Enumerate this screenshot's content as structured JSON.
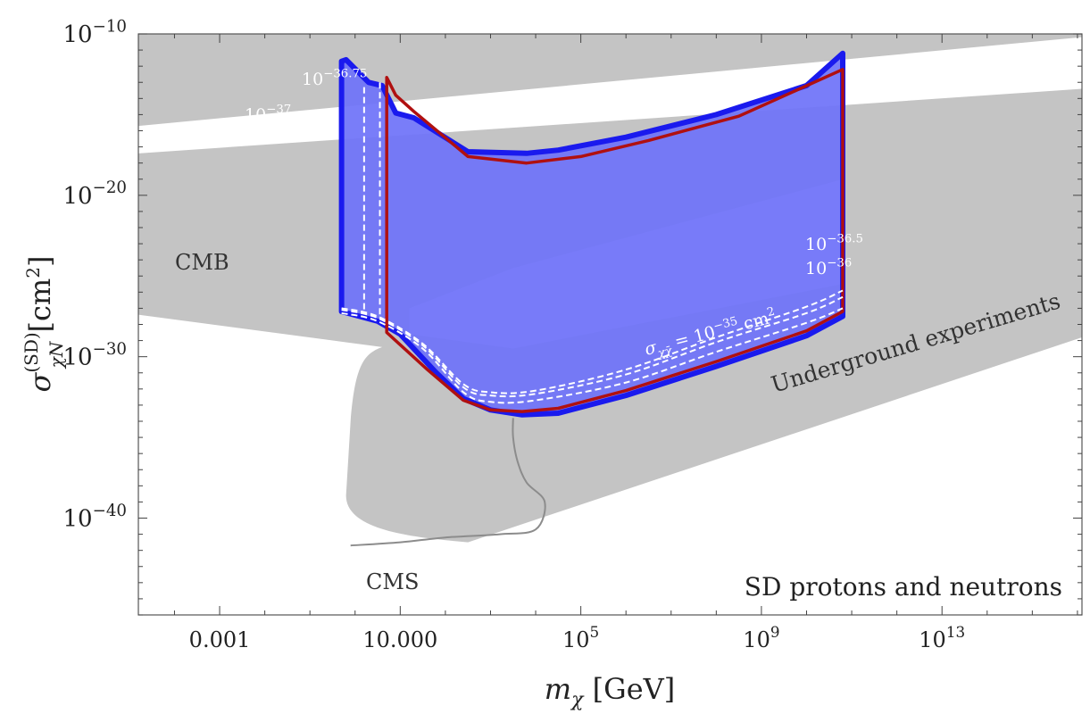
{
  "chart_data": {
    "type": "area",
    "title": "",
    "xlabel": {
      "main": "m",
      "sub": "χ",
      "unit": "[GeV]"
    },
    "ylabel": {
      "main": "σ",
      "sup": "(SD)",
      "sub": "χN",
      "unit": "[cm",
      "unit_sup": "2",
      "unit_close": "]"
    },
    "x_scale": "log10",
    "y_scale": "log10",
    "xlim_log10": [
      -4.8,
      16.1
    ],
    "ylim_log10": [
      -46,
      -10
    ],
    "x_ticks": [
      {
        "log": -3,
        "label": "0.001",
        "sup": ""
      },
      {
        "log": 1,
        "label": "10.000",
        "sup": ""
      },
      {
        "log": 5,
        "label": "10",
        "sup": "5"
      },
      {
        "log": 9,
        "label": "10",
        "sup": "9"
      },
      {
        "log": 13,
        "label": "10",
        "sup": "13"
      }
    ],
    "y_ticks": [
      {
        "log": -10,
        "label": "10",
        "sup": "−10"
      },
      {
        "log": -20,
        "label": "10",
        "sup": "−20"
      },
      {
        "log": -30,
        "label": "10",
        "sup": "−30"
      },
      {
        "log": -40,
        "label": "10",
        "sup": "−40"
      }
    ],
    "colors": {
      "excluded_gray": "#c4c4c4",
      "blue_fill": "#6e72f8",
      "blue_band": "#7a7efb",
      "blue_edge": "#1a1aee",
      "red": "#b01010",
      "cms_line": "#8c8c8c",
      "dashed": "#ffffff"
    },
    "regions": [
      {
        "name": "CMB",
        "label": "CMB",
        "points": [
          [
            -4.8,
            -10
          ],
          [
            16.1,
            -10
          ],
          [
            16.1,
            -10.2
          ],
          [
            -4.8,
            -15.7
          ]
        ],
        "lower_boundary": [
          [
            -4.8,
            -15.7
          ],
          [
            16.1,
            -10.2
          ]
        ],
        "description_hidden": true
      },
      {
        "name": "Underground experiments",
        "label": "Underground experiments",
        "upper_boundary": [
          [
            -4.8,
            -17.4
          ],
          [
            16.1,
            -13.4
          ]
        ],
        "lower_boundary": [
          [
            -4.8,
            -27.4
          ],
          [
            16.1,
            -28.8
          ]
        ],
        "valley_min": [
          2.5,
          -41.5
        ]
      }
    ],
    "series": [
      {
        "name": "blue_region",
        "upper": [
          [
            -0.3,
            -11.7
          ],
          [
            -0.2,
            -11.6
          ],
          [
            0.3,
            -13.0
          ],
          [
            0.6,
            -13.2
          ],
          [
            0.9,
            -14.9
          ],
          [
            1.3,
            -15.2
          ],
          [
            2.5,
            -17.3
          ],
          [
            3.8,
            -17.4
          ],
          [
            4.5,
            -17.2
          ],
          [
            6,
            -16.4
          ],
          [
            8,
            -15.0
          ],
          [
            10,
            -13.2
          ],
          [
            10.8,
            -11.2
          ]
        ],
        "lower": [
          [
            -0.3,
            -27.2
          ],
          [
            0.5,
            -27.8
          ],
          [
            1,
            -28.6
          ],
          [
            1.8,
            -31.0
          ],
          [
            2.4,
            -32.6
          ],
          [
            3.0,
            -33.3
          ],
          [
            3.7,
            -33.6
          ],
          [
            4.5,
            -33.5
          ],
          [
            6,
            -32.4
          ],
          [
            8,
            -30.6
          ],
          [
            10,
            -28.7
          ],
          [
            10.8,
            -27.5
          ]
        ]
      },
      {
        "name": "red_contour",
        "upper": [
          [
            0.7,
            -12.7
          ],
          [
            0.9,
            -13.8
          ],
          [
            1.3,
            -14.8
          ],
          [
            2.5,
            -17.6
          ],
          [
            3.8,
            -18.0
          ],
          [
            5,
            -17.6
          ],
          [
            6.5,
            -16.6
          ],
          [
            8.5,
            -15.1
          ],
          [
            10.8,
            -12.2
          ]
        ],
        "lower": [
          [
            0.7,
            -28.5
          ],
          [
            1.6,
            -30.8
          ],
          [
            2.4,
            -32.7
          ],
          [
            3.0,
            -33.3
          ],
          [
            3.7,
            -33.4
          ],
          [
            4.5,
            -33.2
          ],
          [
            6,
            -32.1
          ],
          [
            8,
            -30.3
          ],
          [
            10,
            -28.4
          ],
          [
            10.8,
            -27.2
          ]
        ]
      },
      {
        "name": "dashed_1e-35",
        "points": [
          [
            -0.3,
            -27.3
          ],
          [
            0.5,
            -27.8
          ],
          [
            1.5,
            -29.5
          ],
          [
            2.4,
            -32.2
          ],
          [
            3.0,
            -32.8
          ],
          [
            4,
            -32.7
          ],
          [
            6,
            -31.6
          ],
          [
            8,
            -29.7
          ],
          [
            10,
            -27.9
          ],
          [
            10.8,
            -27.0
          ]
        ]
      },
      {
        "name": "dashed_1e-36",
        "points": [
          [
            -0.3,
            -27.1
          ],
          [
            0.5,
            -27.6
          ],
          [
            1.5,
            -29.3
          ],
          [
            2.4,
            -31.9
          ],
          [
            3.0,
            -32.4
          ],
          [
            4,
            -32.3
          ],
          [
            6,
            -31.1
          ],
          [
            8,
            -29.1
          ],
          [
            10,
            -27.3
          ],
          [
            10.8,
            -26.3
          ]
        ]
      },
      {
        "name": "dashed_1e-36.5",
        "points": [
          [
            -0.3,
            -27.0
          ],
          [
            0.5,
            -27.5
          ],
          [
            1.5,
            -29.2
          ],
          [
            2.4,
            -31.7
          ],
          [
            3.0,
            -32.2
          ],
          [
            4,
            -32.1
          ],
          [
            6,
            -30.8
          ],
          [
            8,
            -28.8
          ],
          [
            10,
            -26.9
          ],
          [
            10.8,
            -25.9
          ]
        ]
      }
    ],
    "vertical_dashed": [
      {
        "x_log": 0.2,
        "y_top_log": -13.3,
        "y_bottom_log": -27.3
      },
      {
        "x_log": 0.55,
        "y_top_log": -13.0,
        "y_bottom_log": -27.6
      }
    ],
    "cms_curve": [
      [
        -0.1,
        -41.7
      ],
      [
        1,
        -41.5
      ],
      [
        2,
        -41.2
      ],
      [
        3.2,
        -41.0
      ],
      [
        4.0,
        -40.7
      ],
      [
        4.2,
        -39.0
      ],
      [
        3.8,
        -37.8
      ],
      [
        3.6,
        -36.5
      ],
      [
        3.5,
        -35.0
      ],
      [
        3.5,
        -33.8
      ]
    ],
    "annotations": {
      "cmb": "CMB",
      "underground": "Underground experiments",
      "cms": "CMS",
      "sd_label": "SD protons and neutrons",
      "contour_37": {
        "base": "10",
        "sup": "−37"
      },
      "contour_3675": {
        "base": "10",
        "sup": "−36.75"
      },
      "contour_365": {
        "base": "10",
        "sup": "−36.5"
      },
      "contour_36": {
        "base": "10",
        "sup": "−36"
      },
      "sigma_label": {
        "main": "σ",
        "sub": "χχ̄",
        "eq": " = 10",
        "sup": "−35",
        "unit": " cm",
        "unit_sup": "2"
      }
    },
    "grid": false,
    "legend": "none"
  }
}
